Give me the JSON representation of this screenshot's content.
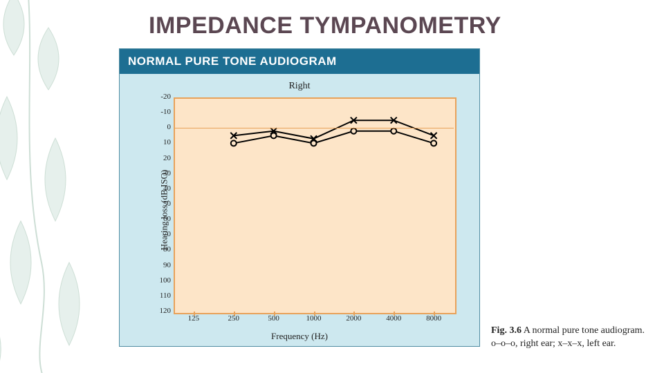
{
  "slide": {
    "title": "IMPEDANCE TYMPANOMETRY",
    "title_color": "#5b4752",
    "title_fontsize": 34
  },
  "decor": {
    "leaf_color": "#cfe3da",
    "stem_color": "#9cbfad"
  },
  "figure": {
    "box_bg": "#cde8ef",
    "box_border": "#4f8ca2",
    "header_text": "NORMAL PURE TONE AUDIOGRAM",
    "header_bg": "#1d6e92",
    "header_color": "#ffffff",
    "header_fontsize": 17
  },
  "chart": {
    "type": "line",
    "title_top": "Right",
    "xlabel": "Frequency (Hz)",
    "ylabel": "Hearing loss (dB ISO)",
    "label_fontsize": 13,
    "tick_fontsize": 11,
    "plot_bg": "#fde5c8",
    "plot_border": "#e8a25a",
    "zero_line_color": "#e8a25a",
    "x_categories": [
      "125",
      "250",
      "500",
      "1000",
      "2000",
      "4000",
      "8000"
    ],
    "x_tick_positions_index": [
      0,
      1,
      2,
      3,
      4,
      5,
      6
    ],
    "ylim": [
      -20,
      120
    ],
    "ytick_step": 10,
    "yticks": [
      -20,
      -10,
      0,
      10,
      20,
      30,
      40,
      50,
      60,
      70,
      80,
      90,
      100,
      110,
      120
    ],
    "series": [
      {
        "name": "right_ear",
        "legend": "o–o–o right ear",
        "marker": "circle",
        "marker_size": 8,
        "line_width": 2,
        "color": "#000000",
        "x_index": [
          1,
          2,
          3,
          4,
          5,
          6
        ],
        "y": [
          10,
          5,
          10,
          2,
          2,
          10
        ]
      },
      {
        "name": "left_ear",
        "legend": "x–x–x left ear",
        "marker": "x",
        "marker_size": 9,
        "line_width": 2,
        "color": "#000000",
        "x_index": [
          1,
          2,
          3,
          4,
          5,
          6
        ],
        "y": [
          5,
          2,
          7,
          -5,
          -5,
          5
        ]
      }
    ]
  },
  "caption": {
    "label": "Fig. 3.6",
    "text": "A normal pure tone audiogram. o–o–o, right ear; x–x–x, left ear.",
    "fontsize": 14
  }
}
